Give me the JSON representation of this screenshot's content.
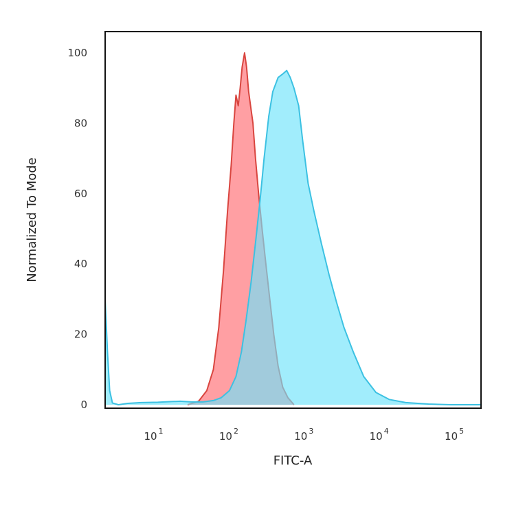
{
  "chart_data": {
    "type": "area",
    "xlabel": "FITC-A",
    "ylabel": "Normalized To Mode",
    "x_scale": "log",
    "xlim": [
      2,
      200000
    ],
    "ylim": [
      0,
      105
    ],
    "y_ticks": [
      0,
      20,
      40,
      60,
      80,
      100
    ],
    "x_ticks": [
      {
        "value": 10,
        "base": "10",
        "exp": "1"
      },
      {
        "value": 100,
        "base": "10",
        "exp": "2"
      },
      {
        "value": 1000,
        "base": "10",
        "exp": "3"
      },
      {
        "value": 10000,
        "base": "10",
        "exp": "4"
      },
      {
        "value": 100000,
        "base": "10",
        "exp": "5"
      }
    ],
    "grid": false,
    "legend": "none",
    "series": [
      {
        "fill": "#ff9a9e",
        "stroke": "#d9453f",
        "points": [
          [
            25,
            0
          ],
          [
            35,
            1
          ],
          [
            45,
            4
          ],
          [
            55,
            10
          ],
          [
            65,
            22
          ],
          [
            75,
            38
          ],
          [
            85,
            55
          ],
          [
            95,
            68
          ],
          [
            103,
            80
          ],
          [
            110,
            88
          ],
          [
            118,
            85
          ],
          [
            125,
            90
          ],
          [
            133,
            96
          ],
          [
            143,
            100
          ],
          [
            152,
            96
          ],
          [
            162,
            89
          ],
          [
            172,
            85
          ],
          [
            185,
            80
          ],
          [
            200,
            70
          ],
          [
            220,
            60
          ],
          [
            245,
            50
          ],
          [
            275,
            40
          ],
          [
            310,
            30
          ],
          [
            350,
            20
          ],
          [
            400,
            11
          ],
          [
            460,
            5
          ],
          [
            540,
            2
          ],
          [
            650,
            0
          ]
        ]
      },
      {
        "fill": "#6fe4fa",
        "stroke": "#3cc1e2",
        "points": [
          [
            2,
            30
          ],
          [
            2.15,
            15
          ],
          [
            2.3,
            4
          ],
          [
            2.5,
            0.5
          ],
          [
            3,
            0
          ],
          [
            4,
            0.4
          ],
          [
            6,
            0.6
          ],
          [
            10,
            0.7
          ],
          [
            15,
            0.9
          ],
          [
            20,
            1
          ],
          [
            28,
            0.8
          ],
          [
            40,
            0.8
          ],
          [
            55,
            1.2
          ],
          [
            70,
            2
          ],
          [
            90,
            4
          ],
          [
            110,
            8
          ],
          [
            130,
            15
          ],
          [
            150,
            24
          ],
          [
            175,
            35
          ],
          [
            200,
            46
          ],
          [
            230,
            58
          ],
          [
            260,
            70
          ],
          [
            300,
            82
          ],
          [
            340,
            89
          ],
          [
            400,
            93
          ],
          [
            460,
            94
          ],
          [
            520,
            95
          ],
          [
            580,
            93
          ],
          [
            650,
            90
          ],
          [
            750,
            85
          ],
          [
            850,
            75
          ],
          [
            1000,
            63
          ],
          [
            1200,
            55
          ],
          [
            1500,
            46
          ],
          [
            1900,
            37
          ],
          [
            2400,
            29
          ],
          [
            3000,
            22
          ],
          [
            4000,
            15
          ],
          [
            5500,
            8
          ],
          [
            8000,
            3.5
          ],
          [
            12000,
            1.5
          ],
          [
            20000,
            0.6
          ],
          [
            40000,
            0.2
          ],
          [
            80000,
            0
          ],
          [
            200000,
            0
          ]
        ]
      }
    ]
  }
}
